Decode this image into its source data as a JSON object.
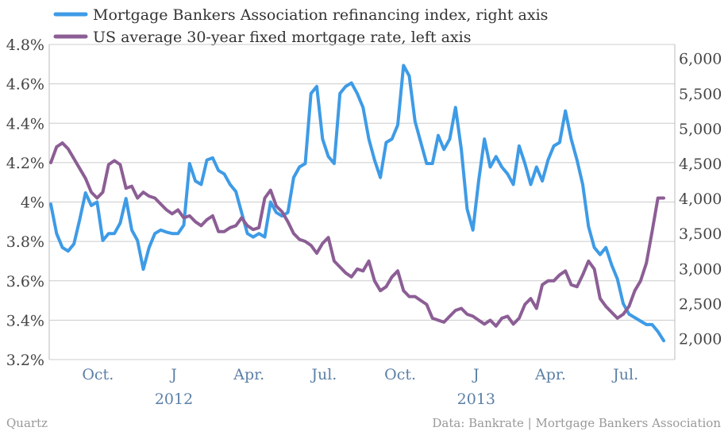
{
  "colors": {
    "refi": "#3e9be6",
    "rate": "#8c5e95",
    "grid": "#cccccc",
    "axis_label": "#5b7fa6"
  },
  "footer": {
    "source_left": "Quartz",
    "source_right": "Data: Bankrate | Mortgage Bankers Association"
  },
  "chart_data": {
    "type": "line",
    "title": "",
    "grid": true,
    "legend_placement": "top-left",
    "x_axis": {
      "range": [
        "2011-08-05",
        "2013-08-16"
      ],
      "ticks": [
        {
          "date": "2011-10-01",
          "label": "Oct."
        },
        {
          "date": "2012-01-01",
          "label": "J"
        },
        {
          "date": "2012-04-01",
          "label": "Apr."
        },
        {
          "date": "2012-07-01",
          "label": "Jul."
        },
        {
          "date": "2012-10-01",
          "label": "Oct."
        },
        {
          "date": "2013-01-01",
          "label": "J"
        },
        {
          "date": "2013-04-01",
          "label": "Apr."
        },
        {
          "date": "2013-07-01",
          "label": "Jul."
        }
      ],
      "year_labels": [
        {
          "date": "2012-01-01",
          "label": "2012"
        },
        {
          "date": "2013-01-01",
          "label": "2013"
        }
      ]
    },
    "y_left": {
      "range": [
        3.2,
        4.8
      ],
      "ticks": [
        {
          "value": 3.2,
          "label": "3.2%"
        },
        {
          "value": 3.4,
          "label": "3.4%"
        },
        {
          "value": 3.6,
          "label": "3.6%"
        },
        {
          "value": 3.8,
          "label": "3.8%"
        },
        {
          "value": 4.0,
          "label": "4%"
        },
        {
          "value": 4.2,
          "label": "4.2%"
        },
        {
          "value": 4.4,
          "label": "4.4%"
        },
        {
          "value": 4.6,
          "label": "4.6%"
        },
        {
          "value": 4.8,
          "label": "4.8%"
        }
      ]
    },
    "y_right": {
      "range": [
        1700,
        6200
      ],
      "ticks": [
        {
          "value": 2000,
          "label": "2,000"
        },
        {
          "value": 2500,
          "label": "2,500"
        },
        {
          "value": 3000,
          "label": "3,000"
        },
        {
          "value": 3500,
          "label": "3,500"
        },
        {
          "value": 4000,
          "label": "4,000"
        },
        {
          "value": 4500,
          "label": "4,500"
        },
        {
          "value": 5000,
          "label": "5,000"
        },
        {
          "value": 5500,
          "label": "5,500"
        },
        {
          "value": 6000,
          "label": "6,000"
        }
      ]
    },
    "series": [
      {
        "name": "Mortgage Bankers Association refinancing index, right axis",
        "axis": "right",
        "color": "#3e9be6",
        "points": [
          [
            "2011-08-05",
            3920
          ],
          [
            "2011-08-12",
            3500
          ],
          [
            "2011-08-19",
            3300
          ],
          [
            "2011-08-26",
            3250
          ],
          [
            "2011-09-02",
            3350
          ],
          [
            "2011-09-09",
            3700
          ],
          [
            "2011-09-16",
            4080
          ],
          [
            "2011-09-23",
            3900
          ],
          [
            "2011-09-30",
            3950
          ],
          [
            "2011-10-07",
            3400
          ],
          [
            "2011-10-14",
            3500
          ],
          [
            "2011-10-21",
            3500
          ],
          [
            "2011-10-28",
            3650
          ],
          [
            "2011-11-04",
            4000
          ],
          [
            "2011-11-11",
            3550
          ],
          [
            "2011-11-18",
            3400
          ],
          [
            "2011-11-25",
            2990
          ],
          [
            "2011-12-02",
            3300
          ],
          [
            "2011-12-09",
            3500
          ],
          [
            "2011-12-16",
            3550
          ],
          [
            "2011-12-23",
            3520
          ],
          [
            "2011-12-30",
            3500
          ],
          [
            "2012-01-06",
            3500
          ],
          [
            "2012-01-13",
            3620
          ],
          [
            "2012-01-20",
            4500
          ],
          [
            "2012-01-27",
            4250
          ],
          [
            "2012-02-03",
            4200
          ],
          [
            "2012-02-10",
            4550
          ],
          [
            "2012-02-17",
            4580
          ],
          [
            "2012-02-24",
            4400
          ],
          [
            "2012-03-02",
            4350
          ],
          [
            "2012-03-09",
            4200
          ],
          [
            "2012-03-16",
            4100
          ],
          [
            "2012-03-23",
            3800
          ],
          [
            "2012-03-30",
            3500
          ],
          [
            "2012-04-06",
            3450
          ],
          [
            "2012-04-13",
            3500
          ],
          [
            "2012-04-20",
            3450
          ],
          [
            "2012-04-27",
            3950
          ],
          [
            "2012-05-04",
            3800
          ],
          [
            "2012-05-11",
            3750
          ],
          [
            "2012-05-18",
            3800
          ],
          [
            "2012-05-25",
            4300
          ],
          [
            "2012-06-01",
            4450
          ],
          [
            "2012-06-08",
            4500
          ],
          [
            "2012-06-15",
            5500
          ],
          [
            "2012-06-22",
            5600
          ],
          [
            "2012-06-29",
            4850
          ],
          [
            "2012-07-06",
            4600
          ],
          [
            "2012-07-13",
            4500
          ],
          [
            "2012-07-20",
            5500
          ],
          [
            "2012-07-27",
            5600
          ],
          [
            "2012-08-03",
            5650
          ],
          [
            "2012-08-10",
            5500
          ],
          [
            "2012-08-17",
            5300
          ],
          [
            "2012-08-24",
            4850
          ],
          [
            "2012-08-31",
            4550
          ],
          [
            "2012-09-07",
            4300
          ],
          [
            "2012-09-14",
            4800
          ],
          [
            "2012-09-21",
            4850
          ],
          [
            "2012-09-28",
            5050
          ],
          [
            "2012-10-05",
            5900
          ],
          [
            "2012-10-12",
            5750
          ],
          [
            "2012-10-19",
            5100
          ],
          [
            "2012-10-26",
            4800
          ],
          [
            "2012-11-02",
            4500
          ],
          [
            "2012-11-09",
            4500
          ],
          [
            "2012-11-16",
            4900
          ],
          [
            "2012-11-23",
            4700
          ],
          [
            "2012-11-30",
            4850
          ],
          [
            "2012-12-07",
            5300
          ],
          [
            "2012-12-14",
            4700
          ],
          [
            "2012-12-21",
            3850
          ],
          [
            "2012-12-28",
            3550
          ],
          [
            "2013-01-04",
            4250
          ],
          [
            "2013-01-11",
            4850
          ],
          [
            "2013-01-18",
            4450
          ],
          [
            "2013-01-25",
            4600
          ],
          [
            "2013-02-01",
            4450
          ],
          [
            "2013-02-08",
            4350
          ],
          [
            "2013-02-15",
            4200
          ],
          [
            "2013-02-22",
            4750
          ],
          [
            "2013-03-01",
            4500
          ],
          [
            "2013-03-08",
            4200
          ],
          [
            "2013-03-15",
            4450
          ],
          [
            "2013-03-22",
            4250
          ],
          [
            "2013-03-29",
            4550
          ],
          [
            "2013-04-05",
            4750
          ],
          [
            "2013-04-12",
            4800
          ],
          [
            "2013-04-19",
            5250
          ],
          [
            "2013-04-26",
            4850
          ],
          [
            "2013-05-03",
            4550
          ],
          [
            "2013-05-10",
            4200
          ],
          [
            "2013-05-17",
            3600
          ],
          [
            "2013-05-24",
            3300
          ],
          [
            "2013-05-31",
            3200
          ],
          [
            "2013-06-07",
            3300
          ],
          [
            "2013-06-14",
            3050
          ],
          [
            "2013-06-21",
            2850
          ],
          [
            "2013-06-28",
            2500
          ],
          [
            "2013-07-05",
            2350
          ],
          [
            "2013-07-12",
            2300
          ],
          [
            "2013-07-19",
            2250
          ],
          [
            "2013-07-26",
            2200
          ],
          [
            "2013-08-02",
            2200
          ],
          [
            "2013-08-09",
            2100
          ],
          [
            "2013-08-16",
            1970
          ]
        ]
      },
      {
        "name": "US average 30-year fixed mortgage rate, left axis",
        "axis": "left",
        "color": "#8c5e95",
        "points": [
          [
            "2011-08-05",
            4.2
          ],
          [
            "2011-08-12",
            4.28
          ],
          [
            "2011-08-19",
            4.3
          ],
          [
            "2011-08-26",
            4.27
          ],
          [
            "2011-09-02",
            4.22
          ],
          [
            "2011-09-09",
            4.17
          ],
          [
            "2011-09-16",
            4.12
          ],
          [
            "2011-09-23",
            4.05
          ],
          [
            "2011-09-30",
            4.02
          ],
          [
            "2011-10-07",
            4.05
          ],
          [
            "2011-10-14",
            4.19
          ],
          [
            "2011-10-21",
            4.21
          ],
          [
            "2011-10-28",
            4.19
          ],
          [
            "2011-11-04",
            4.07
          ],
          [
            "2011-11-11",
            4.08
          ],
          [
            "2011-11-18",
            4.02
          ],
          [
            "2011-11-25",
            4.05
          ],
          [
            "2011-12-02",
            4.03
          ],
          [
            "2011-12-09",
            4.02
          ],
          [
            "2011-12-16",
            3.99
          ],
          [
            "2011-12-23",
            3.96
          ],
          [
            "2011-12-30",
            3.94
          ],
          [
            "2012-01-06",
            3.96
          ],
          [
            "2012-01-13",
            3.92
          ],
          [
            "2012-01-20",
            3.93
          ],
          [
            "2012-01-27",
            3.9
          ],
          [
            "2012-02-03",
            3.88
          ],
          [
            "2012-02-10",
            3.91
          ],
          [
            "2012-02-17",
            3.93
          ],
          [
            "2012-02-24",
            3.85
          ],
          [
            "2012-03-02",
            3.85
          ],
          [
            "2012-03-09",
            3.87
          ],
          [
            "2012-03-16",
            3.88
          ],
          [
            "2012-03-23",
            3.92
          ],
          [
            "2012-03-30",
            3.88
          ],
          [
            "2012-04-06",
            3.86
          ],
          [
            "2012-04-13",
            3.87
          ],
          [
            "2012-04-20",
            4.02
          ],
          [
            "2012-04-27",
            4.06
          ],
          [
            "2012-05-04",
            3.98
          ],
          [
            "2012-05-11",
            3.95
          ],
          [
            "2012-05-18",
            3.9
          ],
          [
            "2012-05-25",
            3.84
          ],
          [
            "2012-06-01",
            3.81
          ],
          [
            "2012-06-08",
            3.8
          ],
          [
            "2012-06-15",
            3.78
          ],
          [
            "2012-06-22",
            3.74
          ],
          [
            "2012-06-29",
            3.79
          ],
          [
            "2012-07-06",
            3.82
          ],
          [
            "2012-07-13",
            3.7
          ],
          [
            "2012-07-20",
            3.67
          ],
          [
            "2012-07-27",
            3.64
          ],
          [
            "2012-08-03",
            3.62
          ],
          [
            "2012-08-10",
            3.66
          ],
          [
            "2012-08-17",
            3.65
          ],
          [
            "2012-08-24",
            3.7
          ],
          [
            "2012-08-31",
            3.6
          ],
          [
            "2012-09-07",
            3.55
          ],
          [
            "2012-09-14",
            3.57
          ],
          [
            "2012-09-21",
            3.62
          ],
          [
            "2012-09-28",
            3.65
          ],
          [
            "2012-10-05",
            3.55
          ],
          [
            "2012-10-12",
            3.52
          ],
          [
            "2012-10-19",
            3.52
          ],
          [
            "2012-10-26",
            3.5
          ],
          [
            "2012-11-02",
            3.48
          ],
          [
            "2012-11-09",
            3.41
          ],
          [
            "2012-11-16",
            3.4
          ],
          [
            "2012-11-23",
            3.39
          ],
          [
            "2012-11-30",
            3.42
          ],
          [
            "2012-12-07",
            3.45
          ],
          [
            "2012-12-14",
            3.46
          ],
          [
            "2012-12-21",
            3.43
          ],
          [
            "2012-12-28",
            3.42
          ],
          [
            "2013-01-04",
            3.4
          ],
          [
            "2013-01-11",
            3.38
          ],
          [
            "2013-01-18",
            3.4
          ],
          [
            "2013-01-25",
            3.37
          ],
          [
            "2013-02-01",
            3.41
          ],
          [
            "2013-02-08",
            3.42
          ],
          [
            "2013-02-15",
            3.38
          ],
          [
            "2013-02-22",
            3.41
          ],
          [
            "2013-03-01",
            3.48
          ],
          [
            "2013-03-08",
            3.51
          ],
          [
            "2013-03-15",
            3.46
          ],
          [
            "2013-03-22",
            3.58
          ],
          [
            "2013-03-29",
            3.6
          ],
          [
            "2013-04-05",
            3.6
          ],
          [
            "2013-04-12",
            3.63
          ],
          [
            "2013-04-19",
            3.65
          ],
          [
            "2013-04-26",
            3.58
          ],
          [
            "2013-05-03",
            3.57
          ],
          [
            "2013-05-10",
            3.63
          ],
          [
            "2013-05-17",
            3.7
          ],
          [
            "2013-05-24",
            3.66
          ],
          [
            "2013-05-31",
            3.51
          ],
          [
            "2013-06-07",
            3.47
          ],
          [
            "2013-06-14",
            3.44
          ],
          [
            "2013-06-21",
            3.41
          ],
          [
            "2013-06-28",
            3.43
          ],
          [
            "2013-07-05",
            3.47
          ],
          [
            "2013-07-12",
            3.55
          ],
          [
            "2013-07-19",
            3.6
          ],
          [
            "2013-07-26",
            3.69
          ],
          [
            "2013-08-02",
            3.85
          ],
          [
            "2013-08-09",
            4.02
          ],
          [
            "2013-08-16",
            4.02
          ]
        ]
      }
    ]
  }
}
